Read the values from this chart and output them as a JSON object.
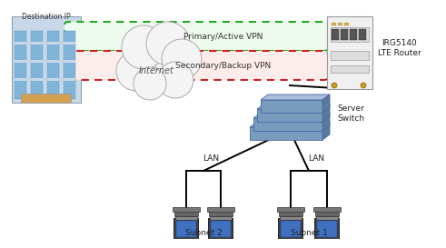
{
  "bg_color": "#ffffff",
  "primary_vpn_label": "Primary/Active VPN",
  "secondary_vpn_label": "Secondary/Backup VPN",
  "internet_label": "Internet",
  "dest_label": "Destination IP",
  "router_label": "IRG5140\nLTE Router",
  "switch_label": "Server\nSwitch",
  "subnet1_label": "Subnet 1",
  "subnet2_label": "Subnet 2",
  "lan_label": "LAN",
  "primary_color": "#22aa22",
  "secondary_color": "#cc2222",
  "line_color": "#000000",
  "cloud_fill": "#f4f4f4",
  "cloud_edge": "#aaaaaa",
  "switch_fill_light": "#aabcd8",
  "switch_fill_dark": "#7a9cbc",
  "switch_fill_side": "#5a7a9c",
  "router_fill": "#f0f0f0",
  "router_edge": "#999999",
  "laptop_body": "#555555",
  "laptop_screen": "#4070c0",
  "laptop_base": "#888888",
  "building_wall": "#c8d8e8",
  "building_frame": "#8899aa",
  "building_glass": "#80b4d8",
  "building_accent": "#d4a050"
}
